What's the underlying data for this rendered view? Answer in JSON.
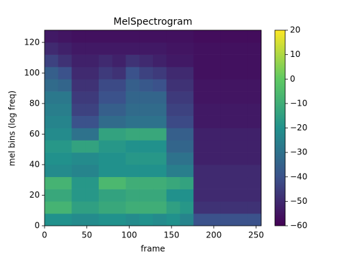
{
  "chart_data": {
    "type": "heatmap",
    "title": "MelSpectrogram",
    "xlabel": "frame",
    "ylabel": "mel bins (log freq)",
    "xlim": [
      0,
      256
    ],
    "ylim": [
      0,
      128
    ],
    "xticks": [
      0,
      50,
      100,
      150,
      200,
      250
    ],
    "yticks": [
      0,
      20,
      40,
      60,
      80,
      100,
      120
    ],
    "colormap": "viridis",
    "clim": [
      -60,
      20
    ],
    "cticks": [
      {
        "value": -60,
        "label": "−60"
      },
      {
        "value": -50,
        "label": "−50"
      },
      {
        "value": -40,
        "label": "−40"
      },
      {
        "value": -30,
        "label": "−30"
      },
      {
        "value": -20,
        "label": "−20"
      },
      {
        "value": -10,
        "label": "−10"
      },
      0,
      10,
      20
    ],
    "z": [
      [
        -20,
        -20,
        -22,
        -22,
        -20,
        -20,
        -22,
        -20,
        -22,
        -20,
        -24,
        -40,
        -40,
        -40,
        -40,
        -40
      ],
      [
        -8,
        -8,
        -15,
        -15,
        -12,
        -12,
        -10,
        -10,
        -10,
        -15,
        -18,
        -48,
        -48,
        -48,
        -48,
        -48
      ],
      [
        -12,
        -12,
        -18,
        -18,
        -14,
        -14,
        -12,
        -12,
        -12,
        -20,
        -20,
        -50,
        -50,
        -50,
        -50,
        -50
      ],
      [
        -8,
        -8,
        -18,
        -18,
        -6,
        -6,
        -10,
        -10,
        -10,
        -12,
        -14,
        -50,
        -50,
        -50,
        -50,
        -50
      ],
      [
        -22,
        -22,
        -24,
        -24,
        -20,
        -20,
        -20,
        -20,
        -20,
        -26,
        -26,
        -50,
        -50,
        -50,
        -50,
        -50
      ],
      [
        -20,
        -20,
        -22,
        -22,
        -20,
        -20,
        -18,
        -18,
        -18,
        -30,
        -30,
        -52,
        -52,
        -52,
        -52,
        -52
      ],
      [
        -18,
        -18,
        -14,
        -14,
        -18,
        -18,
        -20,
        -20,
        -20,
        -34,
        -34,
        -52,
        -52,
        -52,
        -52,
        -52
      ],
      [
        -22,
        -22,
        -30,
        -30,
        -14,
        -14,
        -12,
        -12,
        -12,
        -36,
        -36,
        -52,
        -52,
        -52,
        -52,
        -52
      ],
      [
        -24,
        -24,
        -40,
        -40,
        -32,
        -32,
        -30,
        -30,
        -30,
        -42,
        -42,
        -54,
        -54,
        -54,
        -54,
        -54
      ],
      [
        -26,
        -26,
        -44,
        -44,
        -36,
        -36,
        -32,
        -32,
        -32,
        -44,
        -44,
        -54,
        -54,
        -54,
        -54,
        -54
      ],
      [
        -28,
        -28,
        -46,
        -46,
        -40,
        -40,
        -34,
        -34,
        -34,
        -46,
        -46,
        -55,
        -55,
        -55,
        -55,
        -55
      ],
      [
        -32,
        -34,
        -48,
        -48,
        -42,
        -42,
        -36,
        -38,
        -40,
        -48,
        -48,
        -55,
        -55,
        -55,
        -55,
        -55
      ],
      [
        -36,
        -40,
        -50,
        -50,
        -46,
        -48,
        -40,
        -44,
        -46,
        -50,
        -50,
        -56,
        -56,
        -56,
        -56,
        -56
      ],
      [
        -44,
        -48,
        -52,
        -52,
        -50,
        -52,
        -48,
        -50,
        -52,
        -54,
        -54,
        -56,
        -56,
        -56,
        -56,
        -56
      ],
      [
        -50,
        -52,
        -54,
        -54,
        -54,
        -54,
        -54,
        -54,
        -54,
        -55,
        -55,
        -56,
        -56,
        -56,
        -56,
        -56
      ],
      [
        -54,
        -55,
        -56,
        -56,
        -56,
        -56,
        -56,
        -56,
        -56,
        -56,
        -56,
        -57,
        -57,
        -57,
        -57,
        -57
      ]
    ]
  }
}
